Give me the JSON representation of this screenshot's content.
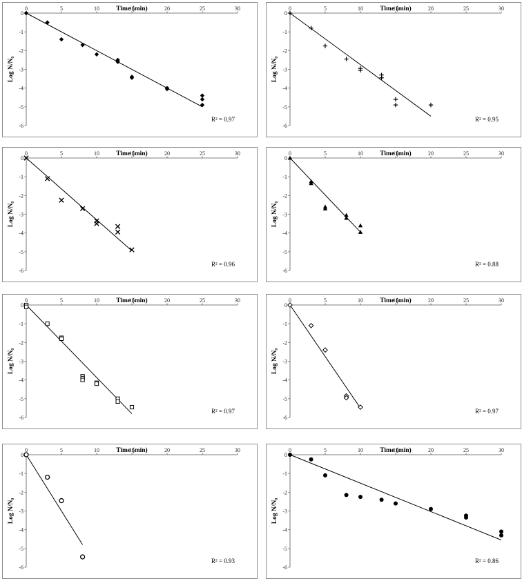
{
  "chart_data": [
    {
      "type": "scatter",
      "marker": "diamond-filled",
      "xlabel": "Time (min)",
      "ylabel": "Log N/N₀",
      "xlim": [
        0,
        30
      ],
      "ylim": [
        -6,
        0
      ],
      "xticks": [
        "0",
        "5",
        "10",
        "15",
        "20",
        "25",
        "30"
      ],
      "yticks": [
        "0",
        "-1",
        "-2",
        "-3",
        "-4",
        "-5",
        "-6"
      ],
      "points": [
        [
          0,
          0
        ],
        [
          3,
          -0.5
        ],
        [
          5,
          -1.4
        ],
        [
          8,
          -1.7
        ],
        [
          10,
          -2.2
        ],
        [
          13,
          -2.5
        ],
        [
          13,
          -2.6
        ],
        [
          15,
          -3.4
        ],
        [
          15,
          -3.45
        ],
        [
          20,
          -4.0
        ],
        [
          20,
          -4.05
        ],
        [
          25,
          -4.4
        ],
        [
          25,
          -4.6
        ],
        [
          25,
          -4.9
        ]
      ],
      "trendline": [
        [
          0,
          0
        ],
        [
          25,
          -5.0
        ]
      ],
      "r2_label": "R² = 0.97"
    },
    {
      "type": "scatter",
      "marker": "plus",
      "xlabel": "Time (min)",
      "ylabel": "Log N/N₀",
      "xlim": [
        0,
        30
      ],
      "ylim": [
        -6,
        0
      ],
      "xticks": [
        "0",
        "5",
        "10",
        "15",
        "20",
        "25",
        "30"
      ],
      "yticks": [
        "0",
        "-1",
        "-2",
        "-3",
        "-4",
        "-5",
        "-6"
      ],
      "points": [
        [
          0,
          0
        ],
        [
          3,
          -0.8
        ],
        [
          5,
          -1.75
        ],
        [
          8,
          -2.45
        ],
        [
          10,
          -2.95
        ],
        [
          10,
          -3.05
        ],
        [
          13,
          -3.3
        ],
        [
          13,
          -3.45
        ],
        [
          15,
          -4.6
        ],
        [
          15,
          -4.9
        ],
        [
          20,
          -4.9
        ]
      ],
      "trendline": [
        [
          0,
          0
        ],
        [
          20,
          -5.5
        ]
      ],
      "r2_label": "R² = 0.95"
    },
    {
      "type": "scatter",
      "marker": "x",
      "xlabel": "Time (min)",
      "ylabel": "Log N/N₀",
      "xlim": [
        0,
        30
      ],
      "ylim": [
        -6,
        0
      ],
      "xticks": [
        "0",
        "5",
        "10",
        "15",
        "20",
        "25",
        "30"
      ],
      "yticks": [
        "0",
        "-1",
        "-2",
        "-3",
        "-4",
        "-5",
        "-6"
      ],
      "points": [
        [
          0,
          0
        ],
        [
          3,
          -1.1
        ],
        [
          5,
          -2.25
        ],
        [
          8,
          -2.7
        ],
        [
          10,
          -3.35
        ],
        [
          10,
          -3.5
        ],
        [
          13,
          -3.65
        ],
        [
          13,
          -3.95
        ],
        [
          15,
          -4.9
        ]
      ],
      "trendline": [
        [
          0,
          0
        ],
        [
          15,
          -4.95
        ]
      ],
      "r2_label": "R² = 0.96"
    },
    {
      "type": "scatter",
      "marker": "triangle-filled",
      "xlabel": "Time (min)",
      "ylabel": "Log N/N₀",
      "xlim": [
        0,
        30
      ],
      "ylim": [
        -6,
        0
      ],
      "xticks": [
        "0",
        "5",
        "10",
        "15",
        "20",
        "25",
        "30"
      ],
      "yticks": [
        "0",
        "-1",
        "-2",
        "-3",
        "-4",
        "-5",
        "-6"
      ],
      "points": [
        [
          0,
          0
        ],
        [
          3,
          -1.25
        ],
        [
          3,
          -1.35
        ],
        [
          5,
          -2.6
        ],
        [
          5,
          -2.7
        ],
        [
          8,
          -3.05
        ],
        [
          8,
          -3.2
        ],
        [
          10,
          -3.6
        ],
        [
          10,
          -3.95
        ]
      ],
      "trendline": [
        [
          0,
          0
        ],
        [
          10,
          -3.95
        ]
      ],
      "r2_label": "R² = 0.88"
    },
    {
      "type": "scatter",
      "marker": "square-open",
      "xlabel": "Time (min)",
      "ylabel": "Log N/N₀",
      "xlim": [
        0,
        30
      ],
      "ylim": [
        -6,
        0
      ],
      "xticks": [
        "0",
        "5",
        "10",
        "15",
        "20",
        "25",
        "30"
      ],
      "yticks": [
        "0",
        "-1",
        "-2",
        "-3",
        "-4",
        "-5",
        "-6"
      ],
      "points": [
        [
          0,
          0
        ],
        [
          0,
          -0.1
        ],
        [
          3,
          -1.0
        ],
        [
          5,
          -1.75
        ],
        [
          5,
          -1.8
        ],
        [
          8,
          -3.8
        ],
        [
          8,
          -3.9
        ],
        [
          8,
          -4.0
        ],
        [
          10,
          -4.15
        ],
        [
          10,
          -4.2
        ],
        [
          13,
          -5.0
        ],
        [
          13,
          -5.15
        ],
        [
          15,
          -5.45
        ]
      ],
      "trendline": [
        [
          0,
          0
        ],
        [
          15,
          -5.8
        ]
      ],
      "r2_label": "R² = 0.97"
    },
    {
      "type": "scatter",
      "marker": "diamond-open",
      "xlabel": "Time (min)",
      "ylabel": "Log N/N₀",
      "xlim": [
        0,
        30
      ],
      "ylim": [
        -6,
        0
      ],
      "xticks": [
        "0",
        "5",
        "10",
        "15",
        "20",
        "25",
        "30"
      ],
      "yticks": [
        "0",
        "-1",
        "-2",
        "-3",
        "-4",
        "-5",
        "-6"
      ],
      "points": [
        [
          0,
          0
        ],
        [
          3,
          -1.1
        ],
        [
          5,
          -2.4
        ],
        [
          8,
          -4.85
        ],
        [
          8,
          -4.95
        ],
        [
          10,
          -5.45
        ]
      ],
      "trendline": [
        [
          0,
          0
        ],
        [
          10,
          -5.5
        ]
      ],
      "r2_label": "R² = 0.97"
    },
    {
      "type": "scatter",
      "marker": "circle-open",
      "xlabel": "Time (min)",
      "ylabel": "Log N/N₀",
      "xlim": [
        0,
        30
      ],
      "ylim": [
        -6,
        0
      ],
      "xticks": [
        "0",
        "5",
        "10",
        "15",
        "20",
        "25",
        "30"
      ],
      "yticks": [
        "0",
        "-1",
        "-2",
        "-3",
        "-4",
        "-5",
        "-6"
      ],
      "points": [
        [
          0,
          0
        ],
        [
          3,
          -1.2
        ],
        [
          5,
          -2.45
        ],
        [
          8,
          -5.45
        ]
      ],
      "trendline": [
        [
          0,
          0
        ],
        [
          8,
          -4.8
        ]
      ],
      "r2_label": "R² = 0.93"
    },
    {
      "type": "scatter",
      "marker": "circle-filled",
      "xlabel": "Time (min)",
      "ylabel": "Log N/N₀",
      "xlim": [
        0,
        30
      ],
      "ylim": [
        -6,
        0
      ],
      "xticks": [
        "0",
        "5",
        "10",
        "15",
        "20",
        "25",
        "30"
      ],
      "yticks": [
        "0",
        "-1",
        "-2",
        "-3",
        "-4",
        "-5",
        "-6"
      ],
      "points": [
        [
          0,
          0
        ],
        [
          3,
          -0.25
        ],
        [
          5,
          -1.1
        ],
        [
          8,
          -2.15
        ],
        [
          10,
          -2.25
        ],
        [
          13,
          -2.4
        ],
        [
          15,
          -2.6
        ],
        [
          20,
          -2.9
        ],
        [
          25,
          -3.25
        ],
        [
          25,
          -3.35
        ],
        [
          30,
          -4.1
        ],
        [
          30,
          -4.3
        ]
      ],
      "trendline": [
        [
          0,
          0
        ],
        [
          30,
          -4.55
        ]
      ],
      "r2_label": "R² = 0.86"
    }
  ]
}
